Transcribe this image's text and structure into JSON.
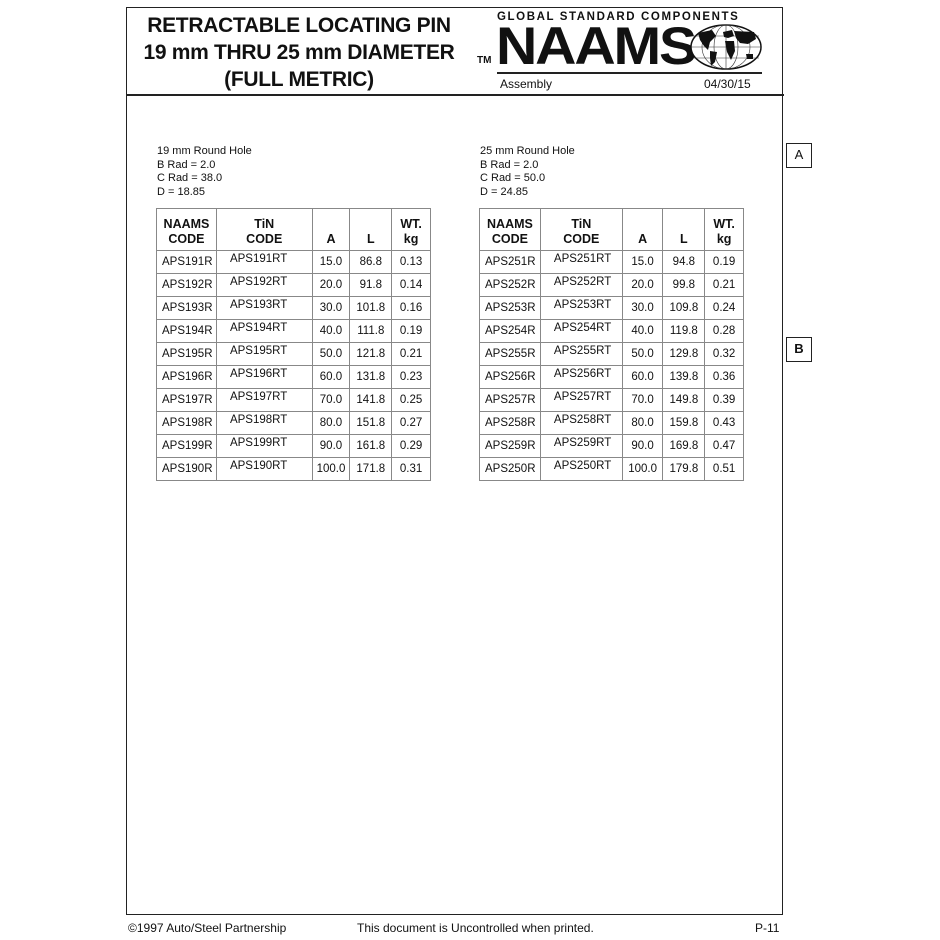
{
  "header": {
    "title_lines": [
      "RETRACTABLE LOCATING PIN",
      "19 mm THRU 25 mm DIAMETER",
      "(FULL METRIC)"
    ],
    "logo_tagline": "GLOBAL STANDARD COMPONENTS",
    "logo_tm": "TM",
    "logo_name": "NAAMS",
    "section": "Assembly",
    "date": "04/30/15"
  },
  "columns": [
    "NAAMS CODE",
    "TiN CODE",
    "A",
    "L",
    "WT. kg"
  ],
  "column_lines": [
    [
      "NAAMS",
      "CODE"
    ],
    [
      "TiN",
      "CODE"
    ],
    [
      "A"
    ],
    [
      "L"
    ],
    [
      "WT.",
      "kg"
    ]
  ],
  "tables": [
    {
      "notes": [
        "19 mm Round Hole",
        "B Rad = 2.0",
        "C Rad = 38.0",
        "D = 18.85"
      ],
      "rows": [
        [
          "APS191R",
          "APS191RT",
          "15.0",
          "86.8",
          "0.13"
        ],
        [
          "APS192R",
          "APS192RT",
          "20.0",
          "91.8",
          "0.14"
        ],
        [
          "APS193R",
          "APS193RT",
          "30.0",
          "101.8",
          "0.16"
        ],
        [
          "APS194R",
          "APS194RT",
          "40.0",
          "111.8",
          "0.19"
        ],
        [
          "APS195R",
          "APS195RT",
          "50.0",
          "121.8",
          "0.21"
        ],
        [
          "APS196R",
          "APS196RT",
          "60.0",
          "131.8",
          "0.23"
        ],
        [
          "APS197R",
          "APS197RT",
          "70.0",
          "141.8",
          "0.25"
        ],
        [
          "APS198R",
          "APS198RT",
          "80.0",
          "151.8",
          "0.27"
        ],
        [
          "APS199R",
          "APS199RT",
          "90.0",
          "161.8",
          "0.29"
        ],
        [
          "APS190R",
          "APS190RT",
          "100.0",
          "171.8",
          "0.31"
        ]
      ]
    },
    {
      "notes": [
        "25 mm Round Hole",
        "B Rad = 2.0",
        "C Rad = 50.0",
        "D = 24.85"
      ],
      "rows": [
        [
          "APS251R",
          "APS251RT",
          "15.0",
          "94.8",
          "0.19"
        ],
        [
          "APS252R",
          "APS252RT",
          "20.0",
          "99.8",
          "0.21"
        ],
        [
          "APS253R",
          "APS253RT",
          "30.0",
          "109.8",
          "0.24"
        ],
        [
          "APS254R",
          "APS254RT",
          "40.0",
          "119.8",
          "0.28"
        ],
        [
          "APS255R",
          "APS255RT",
          "50.0",
          "129.8",
          "0.32"
        ],
        [
          "APS256R",
          "APS256RT",
          "60.0",
          "139.8",
          "0.36"
        ],
        [
          "APS257R",
          "APS257RT",
          "70.0",
          "149.8",
          "0.39"
        ],
        [
          "APS258R",
          "APS258RT",
          "80.0",
          "159.8",
          "0.43"
        ],
        [
          "APS259R",
          "APS259RT",
          "90.0",
          "169.8",
          "0.47"
        ],
        [
          "APS250R",
          "APS250RT",
          "100.0",
          "179.8",
          "0.51"
        ]
      ]
    }
  ],
  "side_tabs": [
    "A",
    "B"
  ],
  "footer": {
    "copyright": "©1997 Auto/Steel Partnership",
    "notice": "This document is Uncontrolled when printed.",
    "page": "P-11"
  }
}
